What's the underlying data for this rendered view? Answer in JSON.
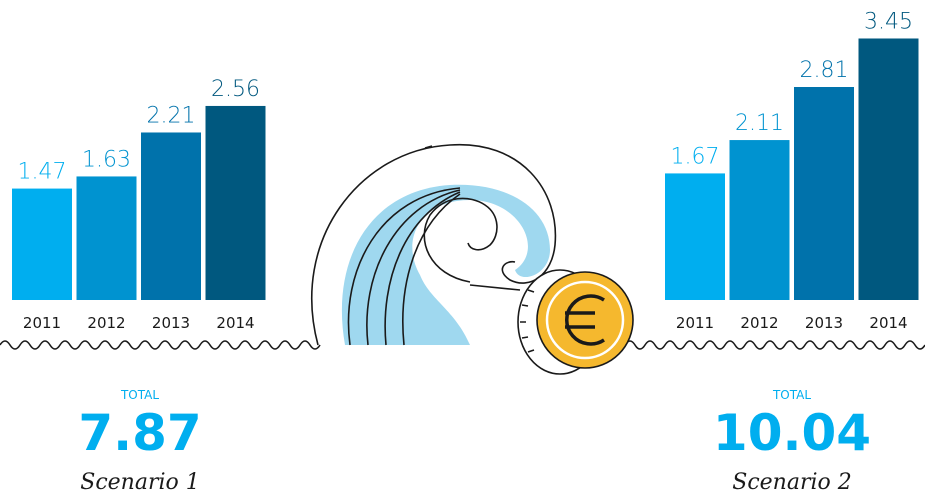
{
  "chart_data": [
    {
      "type": "bar",
      "categories": [
        "2011",
        "2012",
        "2013",
        "2014"
      ],
      "values": [
        1.47,
        1.63,
        2.21,
        2.56
      ],
      "colors": [
        "#00aeef",
        "#0093d0",
        "#0072ab",
        "#00587f"
      ],
      "total_label": "TOTAL",
      "total": 7.87,
      "scenario": "Scenario 1"
    },
    {
      "type": "bar",
      "categories": [
        "2011",
        "2012",
        "2013",
        "2014"
      ],
      "values": [
        1.67,
        2.11,
        2.81,
        3.45
      ],
      "colors": [
        "#00aeef",
        "#0093d0",
        "#0072ab",
        "#00587f"
      ],
      "total_label": "TOTAL",
      "total": 10.04,
      "scenario": "Scenario 2"
    }
  ]
}
